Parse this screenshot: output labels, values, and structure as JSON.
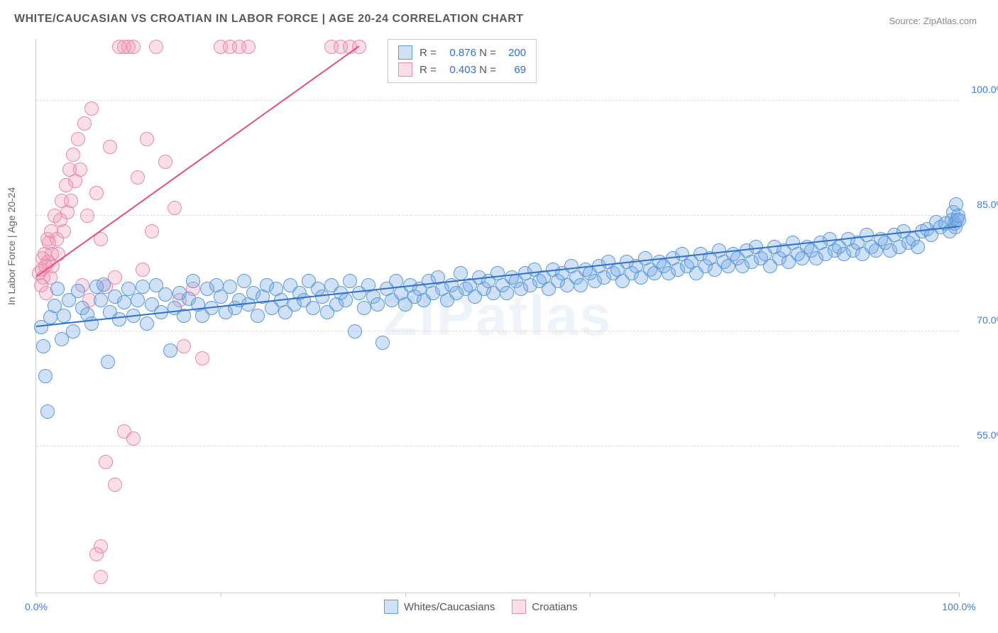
{
  "title": "WHITE/CAUCASIAN VS CROATIAN IN LABOR FORCE | AGE 20-24 CORRELATION CHART",
  "source_label": "Source: ",
  "source_value": "ZipAtlas.com",
  "ylabel": "In Labor Force | Age 20-24",
  "watermark": "ZIPatlas",
  "chart": {
    "type": "scatter",
    "xlim": [
      0,
      100
    ],
    "ylim": [
      36,
      108
    ],
    "yticks": [
      55.0,
      70.0,
      85.0,
      100.0
    ],
    "ytick_labels": [
      "55.0%",
      "70.0%",
      "85.0%",
      "100.0%"
    ],
    "xticks": [
      0,
      20,
      40,
      60,
      80,
      100
    ],
    "xtick_labels": {
      "0": "0.0%",
      "100": "100.0%"
    },
    "background_color": "#ffffff",
    "grid_color": "#dddddd",
    "axis_color": "#cccccc",
    "marker_radius": 9,
    "marker_stroke_width": 1,
    "series": [
      {
        "name": "Whites/Caucasians",
        "fill_color": "rgba(120,170,230,0.35)",
        "stroke_color": "#5a9bd8",
        "trend_color": "#2f6fd0",
        "R": 0.876,
        "N": 200,
        "trend": {
          "x1": 0,
          "y1": 70.5,
          "x2": 100,
          "y2": 83.5
        },
        "points": [
          [
            0.5,
            70.5
          ],
          [
            0.8,
            68.0
          ],
          [
            1.0,
            64.2
          ],
          [
            1.2,
            59.5
          ],
          [
            1.5,
            71.8
          ],
          [
            2.0,
            73.3
          ],
          [
            2.3,
            75.5
          ],
          [
            2.8,
            69.0
          ],
          [
            3.0,
            72.0
          ],
          [
            3.5,
            74.0
          ],
          [
            4.0,
            70.0
          ],
          [
            4.5,
            75.2
          ],
          [
            5.0,
            73.0
          ],
          [
            5.5,
            72.2
          ],
          [
            6.0,
            71.0
          ],
          [
            6.5,
            75.8
          ],
          [
            7.0,
            74.0
          ],
          [
            7.3,
            76.1
          ],
          [
            7.8,
            66.0
          ],
          [
            8.0,
            72.5
          ],
          [
            8.5,
            74.5
          ],
          [
            9.0,
            71.5
          ],
          [
            9.5,
            73.8
          ],
          [
            10.0,
            75.5
          ],
          [
            10.5,
            72.0
          ],
          [
            11.0,
            74.0
          ],
          [
            11.5,
            75.8
          ],
          [
            12.0,
            71.0
          ],
          [
            12.5,
            73.5
          ],
          [
            13.0,
            76.0
          ],
          [
            13.5,
            72.5
          ],
          [
            14.0,
            74.8
          ],
          [
            14.5,
            67.5
          ],
          [
            15.0,
            73.0
          ],
          [
            15.5,
            75.0
          ],
          [
            16.0,
            72.0
          ],
          [
            16.5,
            74.2
          ],
          [
            17.0,
            76.5
          ],
          [
            17.5,
            73.5
          ],
          [
            18.0,
            72.0
          ],
          [
            18.5,
            75.5
          ],
          [
            19.0,
            73.0
          ],
          [
            19.5,
            76.0
          ],
          [
            20.0,
            74.5
          ],
          [
            20.5,
            72.5
          ],
          [
            21.0,
            75.8
          ],
          [
            21.5,
            73.0
          ],
          [
            22.0,
            74.0
          ],
          [
            22.5,
            76.5
          ],
          [
            23.0,
            73.5
          ],
          [
            23.5,
            75.0
          ],
          [
            24.0,
            72.0
          ],
          [
            24.5,
            74.5
          ],
          [
            25.0,
            76.0
          ],
          [
            25.5,
            73.0
          ],
          [
            26.0,
            75.5
          ],
          [
            26.5,
            74.0
          ],
          [
            27.0,
            72.5
          ],
          [
            27.5,
            76.0
          ],
          [
            28.0,
            73.5
          ],
          [
            28.5,
            75.0
          ],
          [
            29.0,
            74.0
          ],
          [
            29.5,
            76.5
          ],
          [
            30.0,
            73.0
          ],
          [
            30.5,
            75.5
          ],
          [
            31.0,
            74.5
          ],
          [
            31.5,
            72.5
          ],
          [
            32.0,
            76.0
          ],
          [
            32.5,
            73.5
          ],
          [
            33.0,
            75.0
          ],
          [
            33.5,
            74.0
          ],
          [
            34.0,
            76.5
          ],
          [
            34.5,
            70.0
          ],
          [
            35.0,
            75.0
          ],
          [
            35.5,
            73.0
          ],
          [
            36.0,
            76.0
          ],
          [
            36.5,
            74.5
          ],
          [
            37.0,
            73.5
          ],
          [
            37.5,
            68.5
          ],
          [
            38.0,
            75.5
          ],
          [
            38.5,
            74.0
          ],
          [
            39.0,
            76.5
          ],
          [
            39.5,
            75.0
          ],
          [
            40.0,
            73.5
          ],
          [
            40.5,
            76.0
          ],
          [
            41.0,
            74.5
          ],
          [
            41.5,
            75.5
          ],
          [
            42.0,
            74.0
          ],
          [
            42.5,
            76.5
          ],
          [
            43.0,
            75.0
          ],
          [
            43.5,
            77.0
          ],
          [
            44.0,
            75.5
          ],
          [
            44.5,
            74.0
          ],
          [
            45.0,
            76.0
          ],
          [
            45.5,
            75.0
          ],
          [
            46.0,
            77.5
          ],
          [
            46.5,
            75.5
          ],
          [
            47.0,
            76.0
          ],
          [
            47.5,
            74.5
          ],
          [
            48.0,
            77.0
          ],
          [
            48.5,
            75.5
          ],
          [
            49.0,
            76.5
          ],
          [
            49.5,
            75.0
          ],
          [
            50.0,
            77.5
          ],
          [
            50.5,
            76.0
          ],
          [
            51.0,
            75.0
          ],
          [
            51.5,
            77.0
          ],
          [
            52.0,
            76.5
          ],
          [
            52.5,
            75.5
          ],
          [
            53.0,
            77.5
          ],
          [
            53.5,
            76.0
          ],
          [
            54.0,
            78.0
          ],
          [
            54.5,
            76.5
          ],
          [
            55.0,
            77.0
          ],
          [
            55.5,
            75.5
          ],
          [
            56.0,
            78.0
          ],
          [
            56.5,
            76.5
          ],
          [
            57.0,
            77.5
          ],
          [
            57.5,
            76.0
          ],
          [
            58.0,
            78.5
          ],
          [
            58.5,
            77.0
          ],
          [
            59.0,
            76.0
          ],
          [
            59.5,
            78.0
          ],
          [
            60.0,
            77.5
          ],
          [
            60.5,
            76.5
          ],
          [
            61.0,
            78.5
          ],
          [
            61.5,
            77.0
          ],
          [
            62.0,
            79.0
          ],
          [
            62.5,
            77.5
          ],
          [
            63.0,
            78.0
          ],
          [
            63.5,
            76.5
          ],
          [
            64.0,
            79.0
          ],
          [
            64.5,
            77.5
          ],
          [
            65.0,
            78.5
          ],
          [
            65.5,
            77.0
          ],
          [
            66.0,
            79.5
          ],
          [
            66.5,
            78.0
          ],
          [
            67.0,
            77.5
          ],
          [
            67.5,
            79.0
          ],
          [
            68.0,
            78.5
          ],
          [
            68.5,
            77.5
          ],
          [
            69.0,
            79.5
          ],
          [
            69.5,
            78.0
          ],
          [
            70.0,
            80.0
          ],
          [
            70.5,
            78.5
          ],
          [
            71.0,
            79.0
          ],
          [
            71.5,
            77.5
          ],
          [
            72.0,
            80.0
          ],
          [
            72.5,
            78.5
          ],
          [
            73.0,
            79.5
          ],
          [
            73.5,
            78.0
          ],
          [
            74.0,
            80.5
          ],
          [
            74.5,
            79.0
          ],
          [
            75.0,
            78.5
          ],
          [
            75.5,
            80.0
          ],
          [
            76.0,
            79.5
          ],
          [
            76.5,
            78.5
          ],
          [
            77.0,
            80.5
          ],
          [
            77.5,
            79.0
          ],
          [
            78.0,
            81.0
          ],
          [
            78.5,
            79.5
          ],
          [
            79.0,
            80.0
          ],
          [
            79.5,
            78.5
          ],
          [
            80.0,
            81.0
          ],
          [
            80.5,
            79.5
          ],
          [
            81.0,
            80.5
          ],
          [
            81.5,
            79.0
          ],
          [
            82.0,
            81.5
          ],
          [
            82.5,
            80.0
          ],
          [
            83.0,
            79.5
          ],
          [
            83.5,
            81.0
          ],
          [
            84.0,
            80.5
          ],
          [
            84.5,
            79.5
          ],
          [
            85.0,
            81.5
          ],
          [
            85.5,
            80.0
          ],
          [
            86.0,
            82.0
          ],
          [
            86.5,
            80.5
          ],
          [
            87.0,
            81.0
          ],
          [
            87.5,
            80.0
          ],
          [
            88.0,
            82.0
          ],
          [
            88.5,
            80.5
          ],
          [
            89.0,
            81.5
          ],
          [
            89.5,
            80.0
          ],
          [
            90.0,
            82.5
          ],
          [
            90.5,
            81.0
          ],
          [
            91.0,
            80.5
          ],
          [
            91.5,
            82.0
          ],
          [
            92.0,
            81.5
          ],
          [
            92.5,
            80.5
          ],
          [
            93.0,
            82.5
          ],
          [
            93.5,
            81.0
          ],
          [
            94.0,
            83.0
          ],
          [
            94.5,
            81.5
          ],
          [
            95.0,
            82.0
          ],
          [
            95.5,
            81.0
          ],
          [
            96.0,
            83.0
          ],
          [
            96.5,
            83.3
          ],
          [
            97.0,
            82.5
          ],
          [
            97.5,
            84.2
          ],
          [
            98.0,
            83.5
          ],
          [
            98.5,
            84.0
          ],
          [
            99.0,
            83.0
          ],
          [
            99.2,
            84.5
          ],
          [
            99.4,
            85.5
          ],
          [
            99.5,
            84.0
          ],
          [
            99.6,
            83.5
          ],
          [
            99.7,
            86.5
          ],
          [
            99.8,
            84.5
          ],
          [
            99.9,
            85.0
          ],
          [
            100.0,
            84.5
          ]
        ]
      },
      {
        "name": "Croatians",
        "fill_color": "rgba(240,150,180,0.30)",
        "stroke_color": "#e88aa8",
        "trend_color": "#e84c88",
        "R": 0.403,
        "N": 69,
        "trend": {
          "x1": 0,
          "y1": 77.0,
          "x2": 35,
          "y2": 107.0
        },
        "points": [
          [
            0.3,
            77.5
          ],
          [
            0.5,
            76.0
          ],
          [
            0.6,
            78.0
          ],
          [
            0.7,
            79.5
          ],
          [
            0.8,
            77.0
          ],
          [
            0.9,
            80.0
          ],
          [
            1.0,
            78.5
          ],
          [
            1.1,
            75.0
          ],
          [
            1.2,
            82.0
          ],
          [
            1.3,
            79.0
          ],
          [
            1.4,
            81.5
          ],
          [
            1.5,
            77.0
          ],
          [
            1.6,
            83.0
          ],
          [
            1.7,
            80.0
          ],
          [
            1.8,
            78.5
          ],
          [
            2.0,
            85.0
          ],
          [
            2.2,
            82.0
          ],
          [
            2.4,
            80.0
          ],
          [
            2.6,
            84.5
          ],
          [
            2.8,
            87.0
          ],
          [
            3.0,
            83.0
          ],
          [
            3.2,
            89.0
          ],
          [
            3.4,
            85.5
          ],
          [
            3.6,
            91.0
          ],
          [
            3.8,
            87.0
          ],
          [
            4.0,
            93.0
          ],
          [
            4.2,
            89.5
          ],
          [
            4.5,
            95.0
          ],
          [
            4.8,
            91.0
          ],
          [
            5.0,
            76.0
          ],
          [
            5.2,
            97.0
          ],
          [
            5.5,
            85.0
          ],
          [
            5.8,
            74.0
          ],
          [
            6.0,
            99.0
          ],
          [
            6.5,
            88.0
          ],
          [
            7.0,
            82.0
          ],
          [
            7.5,
            75.8
          ],
          [
            8.0,
            94.0
          ],
          [
            8.5,
            77.0
          ],
          [
            9.0,
            107.0
          ],
          [
            9.5,
            107.0
          ],
          [
            10.0,
            107.0
          ],
          [
            10.5,
            107.0
          ],
          [
            11.0,
            90.0
          ],
          [
            11.5,
            78.0
          ],
          [
            12.0,
            95.0
          ],
          [
            12.5,
            83.0
          ],
          [
            13.0,
            107.0
          ],
          [
            14.0,
            92.0
          ],
          [
            15.0,
            86.0
          ],
          [
            15.5,
            74.0
          ],
          [
            16.0,
            68.0
          ],
          [
            17.0,
            75.5
          ],
          [
            18.0,
            66.5
          ],
          [
            20.0,
            107.0
          ],
          [
            21.0,
            107.0
          ],
          [
            22.0,
            107.0
          ],
          [
            23.0,
            107.0
          ],
          [
            32.0,
            107.0
          ],
          [
            33.0,
            107.0
          ],
          [
            34.0,
            107.0
          ],
          [
            35.0,
            107.0
          ],
          [
            7.5,
            53.0
          ],
          [
            8.5,
            50.0
          ],
          [
            7.0,
            42.0
          ],
          [
            6.5,
            41.0
          ],
          [
            9.5,
            57.0
          ],
          [
            10.5,
            56.0
          ],
          [
            7.0,
            38.0
          ]
        ]
      }
    ]
  },
  "legend_top": {
    "label_R": "R",
    "label_N": "N",
    "eq": "="
  },
  "legend_bottom": [
    {
      "label": "Whites/Caucasians",
      "fill": "rgba(120,170,230,0.35)",
      "stroke": "#5a9bd8"
    },
    {
      "label": "Croatians",
      "fill": "rgba(240,150,180,0.30)",
      "stroke": "#e88aa8"
    }
  ]
}
